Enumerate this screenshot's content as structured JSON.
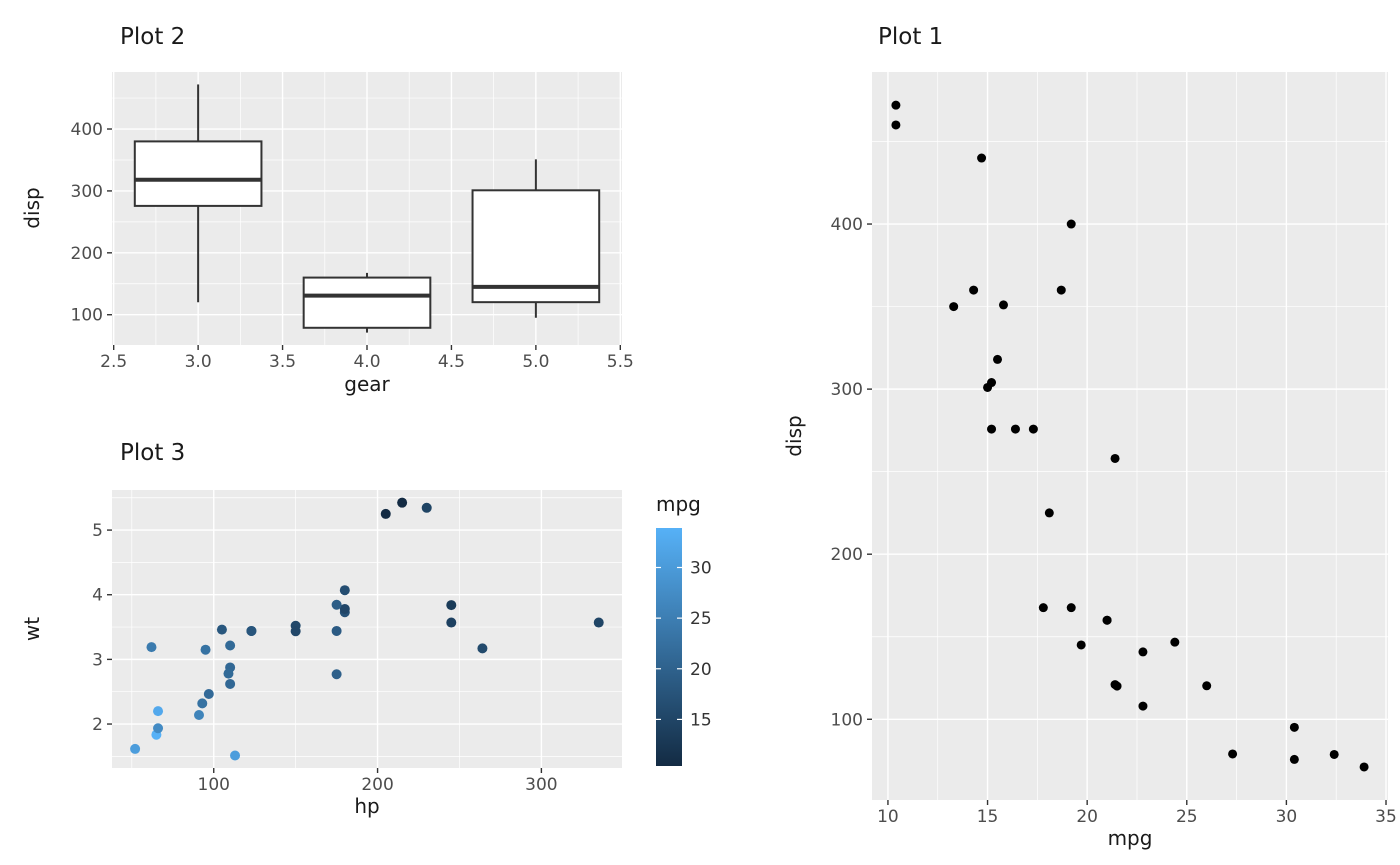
{
  "figure": {
    "background": "#FFFFFF"
  },
  "theme": {
    "panel_bg": "#EBEBEB",
    "grid_major": "#FFFFFF",
    "grid_minor": "#FFFFFF",
    "tick_color": "#333333",
    "tick_label_color": "#4D4D4D",
    "title_color": "#1a1a1a",
    "point_color": "#000000",
    "box_stroke": "#333333"
  },
  "chart_data": [
    {
      "id": "plot2",
      "type": "boxplot",
      "title": "Plot 2",
      "xlabel": "gear",
      "ylabel": "disp",
      "xlim": [
        2.49,
        5.51
      ],
      "ylim": [
        51.1,
        492.1
      ],
      "x_ticks": [
        2.5,
        3.0,
        3.5,
        4.0,
        4.5,
        5.0,
        5.5
      ],
      "x_tick_labels": [
        "2.5",
        "3.0",
        "3.5",
        "4.0",
        "4.5",
        "5.0",
        "5.5"
      ],
      "y_ticks": [
        100,
        200,
        300,
        400
      ],
      "y_tick_labels": [
        "100",
        "200",
        "300",
        "400"
      ],
      "grid": true,
      "boxes": [
        {
          "x": 3,
          "width": 0.75,
          "whisker_low": 120.1,
          "q1": 275.8,
          "median": 318,
          "q3": 380,
          "whisker_high": 472
        },
        {
          "x": 4,
          "width": 0.75,
          "whisker_low": 71.1,
          "q1": 78.9,
          "median": 130.9,
          "q3": 160,
          "whisker_high": 167.6
        },
        {
          "x": 5,
          "width": 0.75,
          "whisker_low": 95.1,
          "q1": 120.3,
          "median": 145,
          "q3": 301,
          "whisker_high": 351
        }
      ]
    },
    {
      "id": "plot3",
      "type": "scatter",
      "title": "Plot 3",
      "xlabel": "hp",
      "ylabel": "wt",
      "xlim": [
        37.9,
        349.2
      ],
      "ylim": [
        1.32,
        5.62
      ],
      "x_ticks": [
        100,
        200,
        300
      ],
      "x_tick_labels": [
        "100",
        "200",
        "300"
      ],
      "y_ticks": [
        2,
        3,
        4,
        5
      ],
      "y_tick_labels": [
        "2",
        "3",
        "4",
        "5"
      ],
      "grid": true,
      "color": {
        "label": "mpg",
        "domain": [
          10.4,
          33.9
        ],
        "ticks": [
          15,
          20,
          25,
          30
        ],
        "tick_labels": [
          "15",
          "20",
          "25",
          "30"
        ],
        "low": "#132B43",
        "high": "#56B1F7",
        "legend_position": "right"
      },
      "points": [
        [
          110,
          2.62,
          21.0
        ],
        [
          110,
          2.875,
          21.0
        ],
        [
          93,
          2.32,
          22.8
        ],
        [
          110,
          3.215,
          21.4
        ],
        [
          175,
          3.44,
          18.7
        ],
        [
          105,
          3.46,
          18.1
        ],
        [
          245,
          3.57,
          14.3
        ],
        [
          62,
          3.19,
          24.4
        ],
        [
          95,
          3.15,
          22.8
        ],
        [
          123,
          3.44,
          19.2
        ],
        [
          123,
          3.44,
          17.8
        ],
        [
          180,
          4.07,
          16.4
        ],
        [
          180,
          3.73,
          17.3
        ],
        [
          180,
          3.78,
          15.2
        ],
        [
          205,
          5.25,
          10.4
        ],
        [
          215,
          5.424,
          10.4
        ],
        [
          230,
          5.345,
          14.7
        ],
        [
          66,
          2.2,
          32.4
        ],
        [
          52,
          1.615,
          30.4
        ],
        [
          65,
          1.835,
          33.9
        ],
        [
          97,
          2.465,
          21.5
        ],
        [
          150,
          3.52,
          15.5
        ],
        [
          150,
          3.435,
          15.2
        ],
        [
          245,
          3.84,
          13.3
        ],
        [
          175,
          3.845,
          19.2
        ],
        [
          66,
          1.935,
          27.3
        ],
        [
          91,
          2.14,
          26.0
        ],
        [
          113,
          1.513,
          30.4
        ],
        [
          264,
          3.17,
          15.8
        ],
        [
          175,
          2.77,
          19.7
        ],
        [
          335,
          3.57,
          15.0
        ],
        [
          109,
          2.78,
          21.4
        ]
      ]
    },
    {
      "id": "plot1",
      "type": "scatter",
      "title": "Plot 1",
      "xlabel": "mpg",
      "ylabel": "disp",
      "xlim": [
        9.2,
        35.1
      ],
      "ylim": [
        51.1,
        492.1
      ],
      "x_ticks": [
        10,
        15,
        20,
        25,
        30,
        35
      ],
      "x_tick_labels": [
        "10",
        "15",
        "20",
        "25",
        "30",
        "35"
      ],
      "y_ticks": [
        100,
        200,
        300,
        400
      ],
      "y_tick_labels": [
        "100",
        "200",
        "300",
        "400"
      ],
      "grid": true,
      "points": [
        [
          21.0,
          160
        ],
        [
          21.0,
          160
        ],
        [
          22.8,
          108
        ],
        [
          21.4,
          258
        ],
        [
          18.7,
          360
        ],
        [
          18.1,
          225
        ],
        [
          14.3,
          360
        ],
        [
          24.4,
          146.7
        ],
        [
          22.8,
          140.8
        ],
        [
          19.2,
          167.6
        ],
        [
          17.8,
          167.6
        ],
        [
          16.4,
          275.8
        ],
        [
          17.3,
          275.8
        ],
        [
          15.2,
          275.8
        ],
        [
          10.4,
          472
        ],
        [
          10.4,
          460
        ],
        [
          14.7,
          440
        ],
        [
          32.4,
          78.7
        ],
        [
          30.4,
          75.7
        ],
        [
          33.9,
          71.1
        ],
        [
          21.5,
          120.1
        ],
        [
          15.5,
          318
        ],
        [
          15.2,
          304
        ],
        [
          13.3,
          350
        ],
        [
          19.2,
          400
        ],
        [
          27.3,
          79
        ],
        [
          26.0,
          120.3
        ],
        [
          30.4,
          95.1
        ],
        [
          15.8,
          351
        ],
        [
          19.7,
          145
        ],
        [
          15.0,
          301
        ],
        [
          21.4,
          121
        ]
      ]
    }
  ]
}
